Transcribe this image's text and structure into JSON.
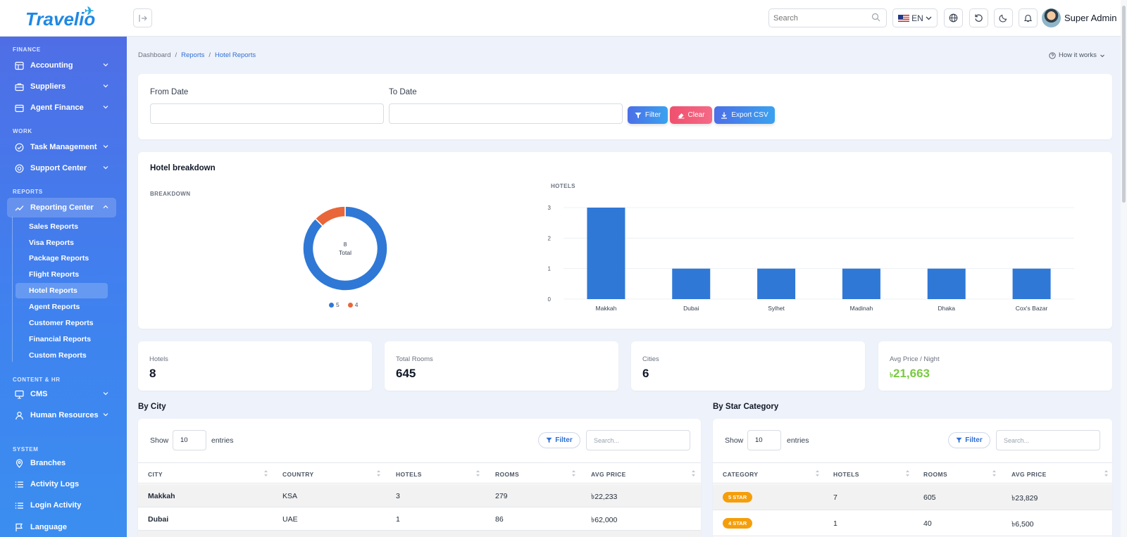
{
  "app": {
    "logo_text": "Travelio"
  },
  "topbar": {
    "search_placeholder": "Search",
    "lang": "EN",
    "user_name": "Super Admin"
  },
  "sidebar": {
    "sections": {
      "finance": "FINANCE",
      "work": "WORK",
      "reports": "REPORTS",
      "content": "CONTENT & HR",
      "system": "SYSTEM"
    },
    "items": {
      "accounting": "Accounting",
      "suppliers": "Suppliers",
      "agent_finance": "Agent Finance",
      "task_management": "Task Management",
      "support_center": "Support Center",
      "reporting_center": "Reporting Center",
      "cms": "CMS",
      "human_resources": "Human Resources",
      "branches": "Branches",
      "activity_logs": "Activity Logs",
      "login_activity": "Login Activity",
      "language": "Language"
    },
    "sub_items": [
      "Sales Reports",
      "Visa Reports",
      "Package Reports",
      "Flight Reports",
      "Hotel Reports",
      "Agent Reports",
      "Customer Reports",
      "Financial Reports",
      "Custom Reports"
    ],
    "active_sub": "Hotel Reports"
  },
  "breadcrumb": {
    "home": "Dashboard",
    "parent": "Reports",
    "current": "Hotel Reports",
    "sep": "/"
  },
  "how_it_works": "How it works",
  "filters": {
    "from_label": "From Date",
    "to_label": "To Date",
    "filter_btn": "Filter",
    "clear_btn": "Clear",
    "export_btn": "Export CSV"
  },
  "breakdown": {
    "title": "Hotel breakdown",
    "donut_label": "BREAKDOWN",
    "bar_label": "HOTELS",
    "total_value": "8",
    "total_label": "Total"
  },
  "chart_data": [
    {
      "type": "pie",
      "title": "",
      "donut": true,
      "categories": [
        "5",
        "4"
      ],
      "values": [
        7,
        1
      ],
      "colors": [
        "#2f78d6",
        "#e8663a"
      ],
      "center_text": [
        "8",
        "Total"
      ],
      "legend_placement": "bottom"
    },
    {
      "type": "bar",
      "title": "",
      "ylabel": "HOTELS",
      "categories": [
        "Makkah",
        "Dubai",
        "Sylhet",
        "Madinah",
        "Dhaka",
        "Cox's Bazar"
      ],
      "values": [
        3,
        1,
        1,
        1,
        1,
        1
      ],
      "ylim": [
        0,
        3
      ],
      "yticks": [
        0,
        1,
        2,
        3
      ],
      "color": "#2f78d6",
      "grid": true
    }
  ],
  "stats": [
    {
      "label": "Hotels",
      "value": "8"
    },
    {
      "label": "Total Rooms",
      "value": "645"
    },
    {
      "label": "Cities",
      "value": "6"
    },
    {
      "label": "Avg Price / Night",
      "currency": "৳",
      "value": "21,663"
    }
  ],
  "by_city": {
    "title": "By City",
    "show": "Show",
    "entries_value": "10",
    "entries": "entries",
    "filter": "Filter",
    "search_placeholder": "Search...",
    "headers": [
      "CITY",
      "COUNTRY",
      "HOTELS",
      "ROOMS",
      "AVG PRICE"
    ],
    "rows": [
      [
        "Makkah",
        "KSA",
        "3",
        "279",
        "৳22,233"
      ],
      [
        "Dubai",
        "UAE",
        "1",
        "86",
        "৳62,000"
      ]
    ]
  },
  "by_star": {
    "title": "By Star Category",
    "show": "Show",
    "entries_value": "10",
    "entries": "entries",
    "filter": "Filter",
    "search_placeholder": "Search...",
    "headers": [
      "CATEGORY",
      "HOTELS",
      "ROOMS",
      "AVG PRICE"
    ],
    "rows": [
      [
        "5 STAR",
        "7",
        "605",
        "৳23,829"
      ],
      [
        "4 STAR",
        "1",
        "40",
        "৳6,500"
      ]
    ]
  }
}
